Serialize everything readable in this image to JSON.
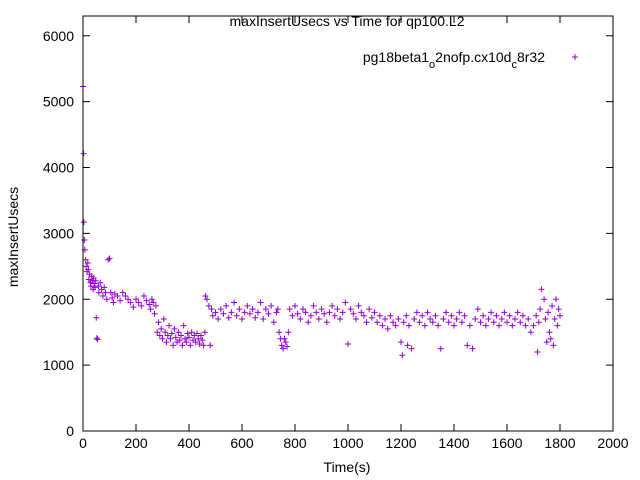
{
  "chart_data": {
    "type": "scatter",
    "title": "maxInsertUsecs vs Time for qp100.L2",
    "xlabel": "Time(s)",
    "ylabel": "maxInsertUsecs",
    "xlim": [
      0,
      2000
    ],
    "ylim": [
      0,
      6300
    ],
    "xticks": [
      0,
      200,
      400,
      600,
      800,
      1000,
      1200,
      1400,
      1600,
      1800,
      2000
    ],
    "yticks": [
      0,
      1000,
      2000,
      3000,
      4000,
      5000,
      6000
    ],
    "grid": false,
    "legend_position": "top-right",
    "marker": "+",
    "color": "#9400d3",
    "series": [
      {
        "name_parts": [
          "pg18beta1",
          "o",
          "2nofp.cx10d",
          "c",
          "8r32"
        ],
        "points": [
          [
            0,
            5230
          ],
          [
            2,
            4210
          ],
          [
            3,
            3170
          ],
          [
            5,
            2900
          ],
          [
            7,
            2750
          ],
          [
            10,
            2600
          ],
          [
            12,
            2500
          ],
          [
            15,
            2420
          ],
          [
            18,
            2550
          ],
          [
            20,
            2450
          ],
          [
            22,
            2300
          ],
          [
            25,
            2380
          ],
          [
            28,
            2250
          ],
          [
            30,
            2200
          ],
          [
            33,
            2350
          ],
          [
            35,
            2280
          ],
          [
            38,
            2150
          ],
          [
            40,
            2320
          ],
          [
            42,
            2240
          ],
          [
            45,
            2180
          ],
          [
            48,
            2280
          ],
          [
            50,
            1720
          ],
          [
            52,
            1410
          ],
          [
            55,
            1390
          ],
          [
            58,
            2200
          ],
          [
            60,
            2100
          ],
          [
            65,
            2250
          ],
          [
            70,
            2150
          ],
          [
            75,
            2050
          ],
          [
            80,
            2180
          ],
          [
            85,
            2100
          ],
          [
            90,
            2000
          ],
          [
            95,
            2600
          ],
          [
            100,
            2620
          ],
          [
            105,
            2100
          ],
          [
            110,
            2020
          ],
          [
            115,
            1950
          ],
          [
            120,
            2080
          ],
          [
            130,
            2050
          ],
          [
            140,
            1980
          ],
          [
            150,
            2100
          ],
          [
            160,
            2050
          ],
          [
            170,
            2000
          ],
          [
            180,
            1950
          ],
          [
            190,
            1880
          ],
          [
            200,
            2000
          ],
          [
            210,
            1950
          ],
          [
            220,
            1900
          ],
          [
            230,
            2050
          ],
          [
            240,
            1980
          ],
          [
            250,
            1920
          ],
          [
            255,
            1850
          ],
          [
            260,
            2000
          ],
          [
            265,
            1950
          ],
          [
            270,
            1780
          ],
          [
            275,
            1900
          ],
          [
            280,
            1500
          ],
          [
            285,
            1650
          ],
          [
            290,
            1450
          ],
          [
            295,
            1550
          ],
          [
            300,
            1400
          ],
          [
            305,
            1700
          ],
          [
            310,
            1500
          ],
          [
            315,
            1350
          ],
          [
            320,
            1450
          ],
          [
            325,
            1600
          ],
          [
            330,
            1400
          ],
          [
            335,
            1480
          ],
          [
            340,
            1300
          ],
          [
            345,
            1550
          ],
          [
            350,
            1420
          ],
          [
            355,
            1350
          ],
          [
            360,
            1500
          ],
          [
            365,
            1380
          ],
          [
            370,
            1450
          ],
          [
            375,
            1300
          ],
          [
            380,
            1600
          ],
          [
            385,
            1400
          ],
          [
            390,
            1350
          ],
          [
            395,
            1480
          ],
          [
            400,
            1420
          ],
          [
            405,
            1300
          ],
          [
            410,
            1500
          ],
          [
            415,
            1380
          ],
          [
            420,
            1450
          ],
          [
            425,
            1350
          ],
          [
            430,
            1480
          ],
          [
            435,
            1400
          ],
          [
            440,
            1320
          ],
          [
            445,
            1450
          ],
          [
            450,
            1380
          ],
          [
            455,
            1300
          ],
          [
            460,
            1500
          ],
          [
            462,
            2050
          ],
          [
            468,
            2000
          ],
          [
            475,
            1900
          ],
          [
            480,
            1300
          ],
          [
            485,
            1850
          ],
          [
            490,
            1750
          ],
          [
            500,
            1800
          ],
          [
            510,
            1700
          ],
          [
            520,
            1850
          ],
          [
            530,
            1780
          ],
          [
            540,
            1900
          ],
          [
            550,
            1720
          ],
          [
            560,
            1800
          ],
          [
            570,
            1950
          ],
          [
            580,
            1750
          ],
          [
            590,
            1850
          ],
          [
            600,
            1700
          ],
          [
            610,
            1800
          ],
          [
            620,
            1900
          ],
          [
            630,
            1780
          ],
          [
            640,
            1850
          ],
          [
            650,
            1720
          ],
          [
            660,
            1800
          ],
          [
            670,
            1950
          ],
          [
            680,
            1700
          ],
          [
            690,
            1850
          ],
          [
            700,
            1780
          ],
          [
            710,
            1900
          ],
          [
            720,
            1650
          ],
          [
            730,
            1800
          ],
          [
            735,
            1850
          ],
          [
            740,
            1500
          ],
          [
            745,
            1400
          ],
          [
            750,
            1300
          ],
          [
            755,
            1250
          ],
          [
            760,
            1400
          ],
          [
            765,
            1350
          ],
          [
            770,
            1280
          ],
          [
            775,
            1500
          ],
          [
            780,
            1850
          ],
          [
            790,
            1750
          ],
          [
            800,
            1900
          ],
          [
            810,
            1780
          ],
          [
            820,
            1700
          ],
          [
            830,
            1850
          ],
          [
            840,
            1800
          ],
          [
            850,
            1650
          ],
          [
            860,
            1750
          ],
          [
            870,
            1900
          ],
          [
            880,
            1800
          ],
          [
            890,
            1700
          ],
          [
            900,
            1850
          ],
          [
            910,
            1780
          ],
          [
            920,
            1650
          ],
          [
            930,
            1800
          ],
          [
            940,
            1900
          ],
          [
            950,
            1750
          ],
          [
            960,
            1850
          ],
          [
            970,
            1700
          ],
          [
            980,
            1800
          ],
          [
            990,
            1950
          ],
          [
            1000,
            1320
          ],
          [
            1010,
            1850
          ],
          [
            1020,
            1780
          ],
          [
            1030,
            1700
          ],
          [
            1040,
            1900
          ],
          [
            1050,
            1800
          ],
          [
            1060,
            1750
          ],
          [
            1070,
            1650
          ],
          [
            1080,
            1850
          ],
          [
            1090,
            1720
          ],
          [
            1100,
            1800
          ],
          [
            1110,
            1650
          ],
          [
            1120,
            1750
          ],
          [
            1130,
            1600
          ],
          [
            1140,
            1700
          ],
          [
            1150,
            1550
          ],
          [
            1160,
            1750
          ],
          [
            1170,
            1650
          ],
          [
            1180,
            1600
          ],
          [
            1190,
            1700
          ],
          [
            1200,
            1350
          ],
          [
            1205,
            1150
          ],
          [
            1210,
            1650
          ],
          [
            1220,
            1750
          ],
          [
            1225,
            1300
          ],
          [
            1230,
            1600
          ],
          [
            1240,
            1250
          ],
          [
            1250,
            1700
          ],
          [
            1260,
            1800
          ],
          [
            1270,
            1650
          ],
          [
            1280,
            1750
          ],
          [
            1290,
            1600
          ],
          [
            1300,
            1800
          ],
          [
            1310,
            1700
          ],
          [
            1320,
            1650
          ],
          [
            1330,
            1750
          ],
          [
            1340,
            1600
          ],
          [
            1350,
            1250
          ],
          [
            1360,
            1700
          ],
          [
            1370,
            1800
          ],
          [
            1380,
            1650
          ],
          [
            1390,
            1750
          ],
          [
            1400,
            1600
          ],
          [
            1410,
            1700
          ],
          [
            1420,
            1800
          ],
          [
            1430,
            1650
          ],
          [
            1440,
            1750
          ],
          [
            1450,
            1300
          ],
          [
            1460,
            1600
          ],
          [
            1470,
            1250
          ],
          [
            1480,
            1700
          ],
          [
            1490,
            1850
          ],
          [
            1500,
            1650
          ],
          [
            1510,
            1750
          ],
          [
            1520,
            1600
          ],
          [
            1530,
            1700
          ],
          [
            1540,
            1800
          ],
          [
            1550,
            1650
          ],
          [
            1560,
            1750
          ],
          [
            1570,
            1600
          ],
          [
            1580,
            1700
          ],
          [
            1590,
            1800
          ],
          [
            1600,
            1650
          ],
          [
            1610,
            1750
          ],
          [
            1620,
            1600
          ],
          [
            1630,
            1700
          ],
          [
            1640,
            1800
          ],
          [
            1650,
            1650
          ],
          [
            1660,
            1750
          ],
          [
            1670,
            1600
          ],
          [
            1680,
            1700
          ],
          [
            1690,
            1500
          ],
          [
            1700,
            1600
          ],
          [
            1710,
            1750
          ],
          [
            1715,
            1200
          ],
          [
            1720,
            1650
          ],
          [
            1725,
            1850
          ],
          [
            1730,
            2150
          ],
          [
            1740,
            2000
          ],
          [
            1745,
            1700
          ],
          [
            1750,
            1350
          ],
          [
            1755,
            1800
          ],
          [
            1760,
            1500
          ],
          [
            1765,
            1400
          ],
          [
            1770,
            1900
          ],
          [
            1775,
            1300
          ],
          [
            1780,
            1700
          ],
          [
            1785,
            2000
          ],
          [
            1790,
            1600
          ],
          [
            1795,
            1850
          ],
          [
            1800,
            1750
          ]
        ]
      }
    ]
  }
}
